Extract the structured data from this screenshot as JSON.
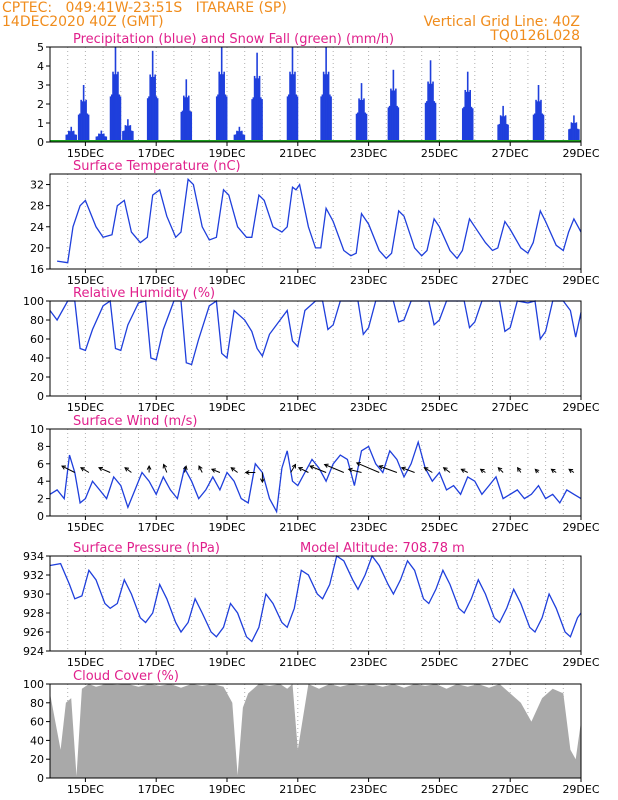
{
  "header": {
    "line1": "CPTEC:   049:41W-23:51S   ITARARE (SP)",
    "line2": "14DEC2020 40Z (GMT)",
    "grid_note": "Vertical Grid Line: 40Z",
    "run_code": "TQ0126L028"
  },
  "colors": {
    "header": "#f08c1c",
    "titles": "#e0208c",
    "series": "#1f3fdc",
    "snow": "#1ca01c",
    "cloud": "#a9a9a9",
    "wind_arrow": "#000000"
  },
  "chart_data": [
    {
      "id": "precip",
      "type": "bar",
      "title": "Precipitation (blue) and Snow Fall (green) (mm/h)",
      "x_ticks": [
        "15DEC",
        "17DEC",
        "19DEC",
        "21DEC",
        "23DEC",
        "25DEC",
        "27DEC",
        "29DEC"
      ],
      "ylim": [
        0,
        5
      ],
      "y_ticks": [
        0,
        1,
        2,
        3,
        4,
        5
      ],
      "snow_values": "all 0",
      "event_peaks": [
        {
          "day": 14.6,
          "peak": 0.8
        },
        {
          "day": 14.95,
          "peak": 3.0
        },
        {
          "day": 15.45,
          "peak": 0.6
        },
        {
          "day": 15.85,
          "peak": 5.0
        },
        {
          "day": 16.2,
          "peak": 1.2
        },
        {
          "day": 16.9,
          "peak": 4.8
        },
        {
          "day": 17.85,
          "peak": 3.3
        },
        {
          "day": 18.85,
          "peak": 5.0
        },
        {
          "day": 19.35,
          "peak": 0.8
        },
        {
          "day": 19.85,
          "peak": 4.7
        },
        {
          "day": 20.85,
          "peak": 5.0
        },
        {
          "day": 21.8,
          "peak": 5.0
        },
        {
          "day": 22.8,
          "peak": 3.1
        },
        {
          "day": 23.7,
          "peak": 3.8
        },
        {
          "day": 24.75,
          "peak": 4.3
        },
        {
          "day": 25.8,
          "peak": 3.7
        },
        {
          "day": 26.8,
          "peak": 1.9
        },
        {
          "day": 27.8,
          "peak": 3.0
        },
        {
          "day": 28.8,
          "peak": 1.4
        }
      ]
    },
    {
      "id": "temp",
      "type": "line",
      "title": "Surface Temperature (nC)",
      "x_ticks": [
        "15DEC",
        "17DEC",
        "19DEC",
        "21DEC",
        "23DEC",
        "25DEC",
        "27DEC",
        "29DEC"
      ],
      "ylim": [
        16,
        34
      ],
      "y_ticks": [
        16,
        20,
        24,
        28,
        32
      ],
      "x": [
        14.2,
        14.5,
        14.65,
        14.85,
        15.0,
        15.3,
        15.5,
        15.75,
        15.9,
        16.1,
        16.3,
        16.55,
        16.75,
        16.9,
        17.1,
        17.3,
        17.55,
        17.7,
        17.9,
        18.05,
        18.3,
        18.5,
        18.7,
        18.9,
        19.05,
        19.3,
        19.55,
        19.7,
        19.9,
        20.05,
        20.3,
        20.55,
        20.7,
        20.85,
        20.95,
        21.05,
        21.3,
        21.5,
        21.65,
        21.8,
        22.0,
        22.3,
        22.5,
        22.65,
        22.8,
        23.0,
        23.3,
        23.5,
        23.65,
        23.85,
        24.0,
        24.3,
        24.5,
        24.65,
        24.85,
        25.0,
        25.3,
        25.5,
        25.65,
        25.85,
        26.0,
        26.3,
        26.5,
        26.65,
        26.85,
        27.0,
        27.3,
        27.5,
        27.65,
        27.85,
        28.0,
        28.3,
        28.5,
        28.65,
        28.8,
        29.0
      ],
      "y": [
        17.5,
        17.2,
        24.0,
        28.0,
        29.0,
        24.0,
        22.0,
        22.5,
        28.0,
        29.0,
        23.0,
        21.0,
        22.0,
        30.0,
        31.0,
        26.0,
        22.0,
        23.0,
        33.0,
        32.0,
        24.0,
        21.5,
        22.0,
        31.0,
        30.0,
        24.0,
        22.0,
        22.0,
        30.0,
        29.0,
        24.0,
        23.0,
        24.0,
        31.5,
        31.0,
        32.0,
        24.0,
        20.0,
        20.0,
        27.5,
        25.0,
        19.5,
        18.5,
        19.0,
        26.5,
        24.5,
        19.5,
        18.0,
        19.0,
        27.0,
        26.0,
        20.0,
        18.5,
        19.5,
        25.5,
        24.0,
        19.5,
        18.0,
        19.5,
        25.5,
        24.0,
        21.0,
        19.5,
        20.0,
        25.0,
        23.5,
        20.0,
        19.0,
        21.0,
        27.0,
        25.0,
        20.5,
        19.5,
        23.0,
        25.5,
        23.0
      ]
    },
    {
      "id": "rh",
      "type": "line",
      "title": "Relative Humidity (%)",
      "x_ticks": [
        "15DEC",
        "17DEC",
        "19DEC",
        "21DEC",
        "23DEC",
        "25DEC",
        "27DEC",
        "29DEC"
      ],
      "ylim": [
        0,
        100
      ],
      "y_ticks": [
        0,
        20,
        40,
        60,
        80,
        100
      ],
      "x": [
        14.0,
        14.2,
        14.5,
        14.7,
        14.85,
        15.0,
        15.2,
        15.5,
        15.7,
        15.85,
        16.0,
        16.2,
        16.5,
        16.7,
        16.85,
        17.0,
        17.2,
        17.5,
        17.7,
        17.85,
        18.0,
        18.2,
        18.5,
        18.7,
        18.85,
        19.0,
        19.2,
        19.5,
        19.7,
        19.85,
        20.0,
        20.2,
        20.5,
        20.7,
        20.85,
        21.0,
        21.2,
        21.5,
        21.7,
        21.85,
        22.0,
        22.2,
        22.5,
        22.7,
        22.85,
        23.0,
        23.2,
        23.5,
        23.7,
        23.85,
        24.0,
        24.2,
        24.5,
        24.7,
        24.85,
        25.0,
        25.2,
        25.5,
        25.7,
        25.85,
        26.0,
        26.2,
        26.5,
        26.7,
        26.85,
        27.0,
        27.2,
        27.5,
        27.7,
        27.85,
        28.0,
        28.2,
        28.5,
        28.7,
        28.85,
        29.0
      ],
      "y": [
        90,
        80,
        100,
        100,
        50,
        48,
        70,
        95,
        100,
        50,
        48,
        75,
        98,
        100,
        40,
        38,
        70,
        100,
        100,
        35,
        33,
        60,
        95,
        100,
        45,
        40,
        90,
        80,
        68,
        50,
        42,
        65,
        80,
        90,
        58,
        52,
        90,
        100,
        100,
        70,
        75,
        100,
        100,
        100,
        65,
        72,
        100,
        100,
        100,
        78,
        80,
        100,
        100,
        100,
        75,
        80,
        100,
        100,
        100,
        72,
        78,
        100,
        100,
        100,
        68,
        72,
        100,
        98,
        100,
        60,
        68,
        100,
        100,
        90,
        62,
        88
      ]
    },
    {
      "id": "wind",
      "type": "line",
      "title": "Surface Wind (m/s)",
      "x_ticks": [
        "15DEC",
        "17DEC",
        "19DEC",
        "21DEC",
        "23DEC",
        "25DEC",
        "27DEC",
        "29DEC"
      ],
      "ylim": [
        0,
        10
      ],
      "y_ticks": [
        0,
        2,
        4,
        6,
        8,
        10
      ],
      "x": [
        14.0,
        14.2,
        14.4,
        14.55,
        14.7,
        14.85,
        15.0,
        15.2,
        15.4,
        15.6,
        15.8,
        16.0,
        16.2,
        16.4,
        16.6,
        16.8,
        17.0,
        17.2,
        17.4,
        17.6,
        17.8,
        18.0,
        18.2,
        18.4,
        18.6,
        18.8,
        19.0,
        19.2,
        19.4,
        19.6,
        19.8,
        20.0,
        20.2,
        20.4,
        20.55,
        20.7,
        20.85,
        21.0,
        21.2,
        21.4,
        21.6,
        21.8,
        22.0,
        22.2,
        22.4,
        22.6,
        22.8,
        23.0,
        23.2,
        23.4,
        23.6,
        23.8,
        24.0,
        24.2,
        24.4,
        24.6,
        24.8,
        25.0,
        25.2,
        25.4,
        25.6,
        25.8,
        26.0,
        26.2,
        26.4,
        26.6,
        26.8,
        27.0,
        27.2,
        27.4,
        27.6,
        27.8,
        28.0,
        28.2,
        28.4,
        28.6,
        28.8,
        29.0
      ],
      "y": [
        2.5,
        3.0,
        2.0,
        7.0,
        5.0,
        1.5,
        2.0,
        4.0,
        3.0,
        2.0,
        4.5,
        3.5,
        1.0,
        3.0,
        5.0,
        4.0,
        2.5,
        4.5,
        3.0,
        2.0,
        5.5,
        4.0,
        2.0,
        3.0,
        4.5,
        3.0,
        5.0,
        4.0,
        2.0,
        1.5,
        6.0,
        5.0,
        2.0,
        0.5,
        5.5,
        7.5,
        4.0,
        3.5,
        5.0,
        6.5,
        5.5,
        4.0,
        6.0,
        7.0,
        6.5,
        3.5,
        7.5,
        8.0,
        6.0,
        5.0,
        7.5,
        6.5,
        4.5,
        6.0,
        8.5,
        5.5,
        4.0,
        5.0,
        3.0,
        3.5,
        2.5,
        4.5,
        4.0,
        2.5,
        3.5,
        4.5,
        2.0,
        2.5,
        3.0,
        2.0,
        2.5,
        3.5,
        2.0,
        2.5,
        1.5,
        3.0,
        2.5,
        2.0
      ]
    },
    {
      "id": "pressure",
      "type": "line",
      "title": "Surface Pressure (hPa)",
      "altitude_text": "Model Altitude: 708.78 m",
      "x_ticks": [
        "15DEC",
        "17DEC",
        "19DEC",
        "21DEC",
        "23DEC",
        "25DEC",
        "27DEC",
        "29DEC"
      ],
      "ylim": [
        924,
        934
      ],
      "y_ticks": [
        924,
        926,
        928,
        930,
        932,
        934
      ],
      "x": [
        14.0,
        14.3,
        14.55,
        14.7,
        14.9,
        15.1,
        15.3,
        15.55,
        15.7,
        15.9,
        16.1,
        16.3,
        16.55,
        16.7,
        16.9,
        17.1,
        17.3,
        17.55,
        17.7,
        17.9,
        18.1,
        18.3,
        18.55,
        18.7,
        18.9,
        19.1,
        19.3,
        19.55,
        19.7,
        19.9,
        20.1,
        20.3,
        20.55,
        20.7,
        20.9,
        21.1,
        21.3,
        21.55,
        21.7,
        21.9,
        22.1,
        22.3,
        22.55,
        22.7,
        22.9,
        23.1,
        23.3,
        23.55,
        23.7,
        23.9,
        24.1,
        24.3,
        24.55,
        24.7,
        24.9,
        25.1,
        25.3,
        25.55,
        25.7,
        25.9,
        26.1,
        26.3,
        26.55,
        26.7,
        26.9,
        27.1,
        27.3,
        27.55,
        27.7,
        27.9,
        28.1,
        28.3,
        28.55,
        28.7,
        28.9,
        29.0
      ],
      "y": [
        933.0,
        933.2,
        931.0,
        929.5,
        929.8,
        932.5,
        931.5,
        929.0,
        928.5,
        929.0,
        931.5,
        930.0,
        927.5,
        927.0,
        928.0,
        931.0,
        929.5,
        927.0,
        926.0,
        927.0,
        929.5,
        928.0,
        926.0,
        925.5,
        926.5,
        929.0,
        928.0,
        925.5,
        925.0,
        926.5,
        930.0,
        929.0,
        927.0,
        926.5,
        928.5,
        932.5,
        932.0,
        930.0,
        929.5,
        931.0,
        934.0,
        933.5,
        931.5,
        930.5,
        932.0,
        934.0,
        933.0,
        931.0,
        930.0,
        931.5,
        933.5,
        932.5,
        929.5,
        929.0,
        930.5,
        932.5,
        931.0,
        928.5,
        928.0,
        929.5,
        931.5,
        930.0,
        927.5,
        927.0,
        928.5,
        930.5,
        929.0,
        926.5,
        926.0,
        927.5,
        930.0,
        928.5,
        926.0,
        925.5,
        927.5,
        928.0
      ]
    },
    {
      "id": "cloud",
      "type": "area",
      "title": "Cloud Cover (%)",
      "x_ticks": [
        "15DEC",
        "17DEC",
        "19DEC",
        "21DEC",
        "23DEC",
        "25DEC",
        "27DEC",
        "29DEC"
      ],
      "ylim": [
        0,
        100
      ],
      "y_ticks": [
        0,
        20,
        40,
        60,
        80,
        100
      ],
      "x": [
        14.0,
        14.15,
        14.3,
        14.45,
        14.6,
        14.75,
        14.9,
        15.1,
        15.3,
        15.6,
        15.9,
        16.2,
        16.5,
        16.8,
        17.1,
        17.4,
        17.7,
        18.0,
        18.3,
        18.6,
        18.9,
        19.15,
        19.3,
        19.45,
        19.6,
        19.9,
        20.2,
        20.5,
        20.7,
        20.85,
        21.0,
        21.3,
        21.6,
        21.9,
        22.2,
        22.5,
        22.8,
        23.1,
        23.4,
        23.7,
        24.0,
        24.3,
        24.6,
        24.9,
        25.2,
        25.5,
        25.8,
        26.1,
        26.4,
        26.7,
        27.0,
        27.3,
        27.6,
        27.9,
        28.2,
        28.5,
        28.7,
        28.85,
        29.0
      ],
      "y": [
        90,
        60,
        30,
        80,
        85,
        2,
        95,
        100,
        97,
        100,
        99,
        100,
        97,
        100,
        98,
        100,
        96,
        100,
        98,
        100,
        97,
        80,
        3,
        75,
        90,
        100,
        98,
        100,
        95,
        100,
        30,
        100,
        95,
        100,
        97,
        100,
        98,
        100,
        97,
        100,
        96,
        100,
        98,
        100,
        95,
        100,
        97,
        100,
        96,
        100,
        90,
        80,
        60,
        85,
        95,
        90,
        30,
        20,
        60
      ]
    }
  ],
  "wind_vectors": [
    {
      "day": 14.7,
      "u": -4.0,
      "v": 2.0
    },
    {
      "day": 15.1,
      "u": -2.5,
      "v": 1.5
    },
    {
      "day": 15.7,
      "u": -3.5,
      "v": 1.5
    },
    {
      "day": 16.3,
      "u": -2.0,
      "v": 1.5
    },
    {
      "day": 16.8,
      "u": 0.0,
      "v": 2.0
    },
    {
      "day": 17.3,
      "u": -1.0,
      "v": 2.5
    },
    {
      "day": 17.8,
      "u": 0.5,
      "v": 2.0
    },
    {
      "day": 18.3,
      "u": -1.0,
      "v": 2.0
    },
    {
      "day": 18.8,
      "u": -2.5,
      "v": 1.0
    },
    {
      "day": 19.3,
      "u": -2.0,
      "v": 1.5
    },
    {
      "day": 19.8,
      "u": -3.0,
      "v": 0.0
    },
    {
      "day": 20.0,
      "u": 0.0,
      "v": -3.0
    },
    {
      "day": 20.8,
      "u": 1.5,
      "v": 2.5
    },
    {
      "day": 21.3,
      "u": -3.0,
      "v": 1.5
    },
    {
      "day": 21.8,
      "u": -5.0,
      "v": 2.0
    },
    {
      "day": 22.3,
      "u": -6.0,
      "v": 2.5
    },
    {
      "day": 22.8,
      "u": -4.0,
      "v": 1.0
    },
    {
      "day": 23.3,
      "u": -7.0,
      "v": 3.0
    },
    {
      "day": 23.8,
      "u": -5.5,
      "v": 2.0
    },
    {
      "day": 24.3,
      "u": -4.0,
      "v": 1.5
    },
    {
      "day": 24.8,
      "u": -2.5,
      "v": 1.5
    },
    {
      "day": 25.3,
      "u": -2.0,
      "v": 1.5
    },
    {
      "day": 25.8,
      "u": -2.0,
      "v": 1.0
    },
    {
      "day": 26.3,
      "u": -1.5,
      "v": 1.0
    },
    {
      "day": 26.8,
      "u": -1.5,
      "v": 1.5
    },
    {
      "day": 27.3,
      "u": -1.0,
      "v": 1.5
    },
    {
      "day": 27.8,
      "u": -1.0,
      "v": 1.0
    },
    {
      "day": 28.3,
      "u": -1.5,
      "v": 1.0
    },
    {
      "day": 28.8,
      "u": -1.5,
      "v": 1.0
    }
  ]
}
